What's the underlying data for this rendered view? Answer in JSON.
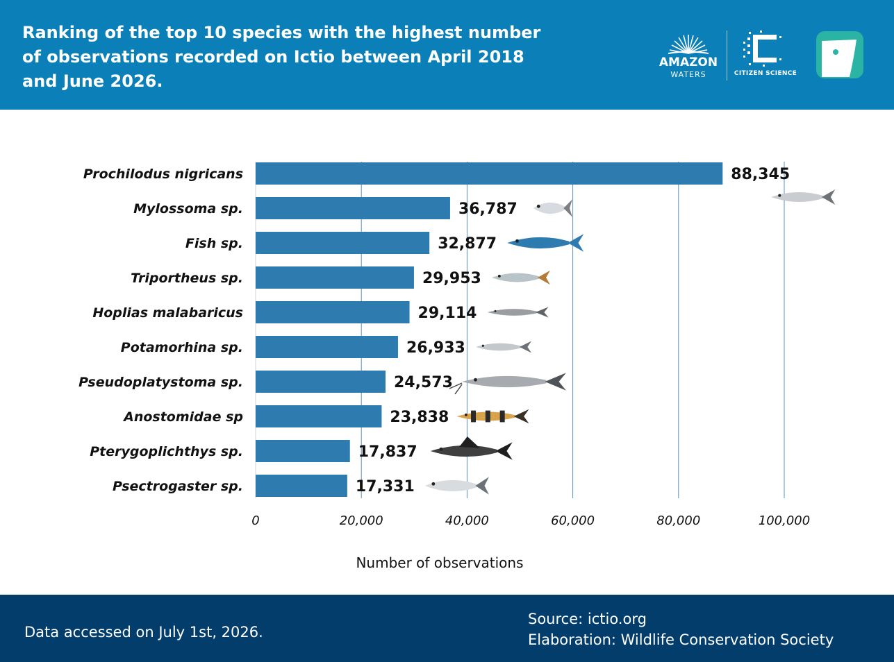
{
  "header": {
    "title": "Ranking of the top 10 species with the highest number of observations recorded on Ictio between April 2018 and June 2026.",
    "logo_amazon_main": "AMAZON",
    "logo_amazon_sub": "WATERS",
    "logo_citizen": "CITIZEN SCIENCE"
  },
  "chart_data": {
    "type": "bar",
    "orientation": "horizontal",
    "categories": [
      "Prochilodus nigricans",
      "Mylossoma sp.",
      "Fish sp.",
      "Triportheus sp.",
      "Hoplias malabaricus",
      "Potamorhina sp.",
      "Pseudoplatystoma sp.",
      "Anostomidae sp",
      "Pterygoplichthys sp.",
      "Psectrogaster sp."
    ],
    "values": [
      88345,
      36787,
      32877,
      29953,
      29114,
      26933,
      24573,
      23838,
      17837,
      17331
    ],
    "value_labels": [
      "88,345",
      "36,787",
      "32,877",
      "29,953",
      "29,114",
      "26,933",
      "24,573",
      "23,838",
      "17,837",
      "17,331"
    ],
    "xlabel": "Number of observations",
    "xlim": [
      0,
      100000
    ],
    "x_ticks": [
      0,
      20000,
      40000,
      60000,
      80000,
      100000
    ],
    "x_tick_labels": [
      "0",
      "20,000",
      "40,000",
      "60,000",
      "80,000",
      "100,000"
    ],
    "grid": true,
    "legend": "none",
    "bar_color": "#2e7bb0",
    "grid_color": "#5b8fb8"
  },
  "footer": {
    "accessed": "Data accessed on July 1st, 2026.",
    "source": "Source: ictio.org",
    "elaboration": "Elaboration: Wildlife Conservation Society"
  },
  "colors": {
    "header_bg": "#0a7fb8",
    "footer_bg": "#023d6b",
    "ictio_logo": "#2bb3a3"
  }
}
